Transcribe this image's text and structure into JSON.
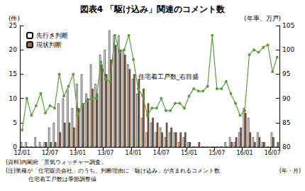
{
  "chart_data": {
    "type": "bar",
    "title": "図表4 「駆け込み」関連のコメント数",
    "y_label": "(件)",
    "y2_label": "(年率、万戸)",
    "x_label": "(年・月)",
    "annotations": [
      "住宅着工戸数_右目盛"
    ],
    "notes": [
      "(資料)内閣府「景気ウォッチャー調査」",
      "(注)業種が「住宅販売会社」のうち、判断理由に「駆け込み」が含まれるコメント数",
      "住宅着工戸数は季節調整値"
    ],
    "categories": [
      "12/01",
      null,
      null,
      null,
      null,
      null,
      "12/07",
      null,
      null,
      null,
      null,
      null,
      "13/01",
      null,
      null,
      null,
      null,
      null,
      "13/07",
      null,
      null,
      null,
      null,
      null,
      "14/01",
      null,
      null,
      null,
      null,
      null,
      "14/07",
      null,
      null,
      null,
      null,
      null,
      "15/01",
      null,
      null,
      null,
      null,
      null,
      "15/07",
      null,
      null,
      null,
      null,
      null,
      "16/01",
      null,
      null,
      null,
      null,
      null,
      "16/07",
      null
    ],
    "series": [
      {
        "name": "先行き判断",
        "type": "bar",
        "color": "#ffffff",
        "values": [
          1,
          1,
          0,
          2,
          1,
          1,
          4,
          5,
          9,
          10,
          12,
          8,
          13,
          15,
          11,
          17,
          13,
          19,
          20,
          24,
          23,
          23,
          20,
          17,
          14,
          11,
          6,
          3,
          5,
          3,
          4,
          2,
          3,
          3,
          1,
          2,
          1,
          0,
          0,
          0,
          0,
          0,
          0,
          0,
          1,
          2,
          1,
          3,
          8,
          6,
          2,
          3,
          1,
          0,
          3,
          0
        ]
      },
      {
        "name": "現状判断",
        "type": "bar",
        "color": "#b5693a",
        "values": [
          0,
          0,
          0,
          0,
          0,
          1,
          1,
          1,
          3,
          5,
          5,
          4,
          8,
          9,
          10,
          12,
          11,
          17,
          15,
          18,
          21,
          20,
          19,
          16,
          15,
          14,
          12,
          9,
          6,
          5,
          3,
          5,
          4,
          3,
          3,
          3,
          1,
          0,
          1,
          0,
          0,
          0,
          0,
          0,
          0,
          1,
          2,
          4,
          7,
          3,
          1,
          2,
          1,
          0,
          2,
          1
        ]
      },
      {
        "name": "住宅着工戸数_右目盛",
        "type": "line",
        "axis": "y2",
        "color": "#5a9e3a",
        "marker": "circle",
        "values": [
          83.5,
          90,
          86.5,
          88.5,
          91,
          87,
          88.5,
          88,
          95,
          90.5,
          92.5,
          95,
          86.5,
          88.5,
          89.5,
          90,
          90,
          97.5,
          94,
          93.5,
          103,
          99.5,
          100,
          103,
          98,
          92,
          90.5,
          86.5,
          88,
          88,
          90,
          87.5,
          87.5,
          89,
          89,
          88,
          90.5,
          92,
          91.5,
          91.5,
          92.5,
          103,
          92,
          92,
          93.5,
          91,
          89,
          86.5,
          87.5,
          99,
          100,
          99.5,
          100.5,
          101,
          95.5,
          98.5
        ]
      }
    ],
    "ylim": [
      0,
      25
    ],
    "yticks": [
      0,
      5,
      10,
      15,
      20,
      25
    ],
    "y2lim": [
      80,
      105
    ],
    "y2ticks": [
      80,
      85,
      90,
      95,
      100,
      105
    ],
    "legend": "upper left",
    "grid": false
  }
}
